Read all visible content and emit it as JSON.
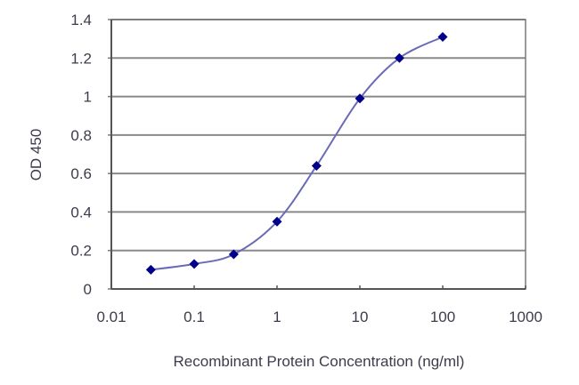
{
  "chart_data": {
    "type": "line",
    "title": "",
    "xlabel": "Recombinant Protein Concentration (ng/ml)",
    "ylabel": "OD 450",
    "x_scale": "log",
    "xlim": [
      0.01,
      1000
    ],
    "ylim": [
      0,
      1.4
    ],
    "x_ticks": [
      0.01,
      0.1,
      1,
      10,
      100,
      1000
    ],
    "x_tick_labels": [
      "0.01",
      "0.1",
      "1",
      "10",
      "100",
      "1000"
    ],
    "y_ticks": [
      0,
      0.2,
      0.4,
      0.6,
      0.8,
      1,
      1.2,
      1.4
    ],
    "y_tick_labels": [
      "0",
      "0.2",
      "0.4",
      "0.6",
      "0.8",
      "1",
      "1.2",
      "1.4"
    ],
    "grid": "horizontal",
    "legend": "none",
    "series": [
      {
        "name": "OD 450",
        "color": "#00008b",
        "line_color": "#6a6ab8",
        "marker": "diamond",
        "x": [
          0.03,
          0.1,
          0.3,
          1,
          3,
          10,
          30,
          100
        ],
        "values": [
          0.1,
          0.13,
          0.18,
          0.35,
          0.64,
          0.99,
          1.2,
          1.31
        ]
      }
    ]
  },
  "colors": {
    "gridline": "#8a8a8a",
    "axis": "#7a7a7a",
    "marker": "#00008b",
    "curve": "#6a6ab8",
    "text": "#3c3c4c"
  }
}
